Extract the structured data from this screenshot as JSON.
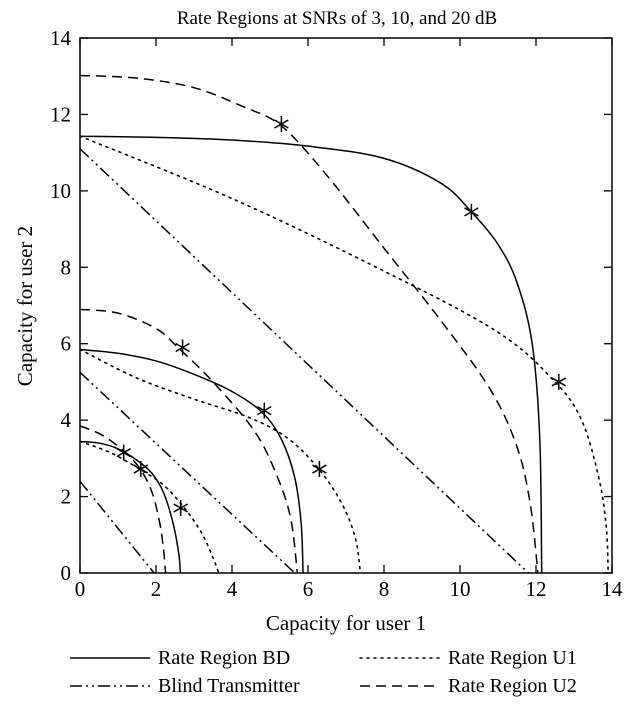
{
  "chart_data": {
    "type": "line",
    "title": "Rate Regions at SNRs of 3, 10, and 20 dB",
    "xlabel": "Capacity for user 1",
    "ylabel": "Capacity for user 2",
    "xlim": [
      0,
      14
    ],
    "ylim": [
      0,
      14
    ],
    "xticks": [
      "0",
      "2",
      "4",
      "6",
      "8",
      "10",
      "12",
      "14"
    ],
    "yticks": [
      "0",
      "2",
      "4",
      "6",
      "8",
      "10",
      "12",
      "14"
    ],
    "grid": false,
    "legend_position": "bottom",
    "legend": [
      {
        "label": "Rate Region BD",
        "style": "solid"
      },
      {
        "label": "Rate Region U1",
        "style": "dotted"
      },
      {
        "label": "Blind Transmitter",
        "style": "dashdotdot"
      },
      {
        "label": "Rate Region U2",
        "style": "dashed"
      }
    ],
    "series": [
      {
        "style": "solid",
        "snr_db": 3,
        "points": [
          [
            0,
            3.44
          ],
          [
            0.5,
            3.4
          ],
          [
            1,
            3.25
          ],
          [
            1.5,
            2.95
          ],
          [
            1.9,
            2.6
          ],
          [
            2.2,
            2.1
          ],
          [
            2.45,
            1.3
          ],
          [
            2.6,
            0.5
          ],
          [
            2.64,
            0
          ]
        ]
      },
      {
        "style": "solid",
        "snr_db": 10,
        "points": [
          [
            0,
            5.85
          ],
          [
            1,
            5.75
          ],
          [
            2,
            5.55
          ],
          [
            3,
            5.2
          ],
          [
            4,
            4.75
          ],
          [
            4.8,
            4.2
          ],
          [
            5.3,
            3.5
          ],
          [
            5.65,
            2.5
          ],
          [
            5.82,
            1.3
          ],
          [
            5.87,
            0
          ]
        ]
      },
      {
        "style": "solid",
        "snr_db": 20,
        "points": [
          [
            0,
            11.43
          ],
          [
            2,
            11.4
          ],
          [
            4,
            11.33
          ],
          [
            6,
            11.17
          ],
          [
            8,
            10.85
          ],
          [
            9.5,
            10.2
          ],
          [
            10.3,
            9.45
          ],
          [
            11,
            8.6
          ],
          [
            11.5,
            7.6
          ],
          [
            11.9,
            6
          ],
          [
            12.1,
            3.5
          ],
          [
            12.15,
            0
          ]
        ]
      },
      {
        "style": "dotted",
        "snr_db": 3,
        "points": [
          [
            0,
            3.44
          ],
          [
            0.8,
            3.15
          ],
          [
            1.6,
            2.7
          ],
          [
            2.2,
            2.3
          ],
          [
            2.75,
            1.7
          ],
          [
            3.2,
            1.05
          ],
          [
            3.5,
            0.4
          ],
          [
            3.65,
            0
          ]
        ]
      },
      {
        "style": "dotted",
        "snr_db": 10,
        "points": [
          [
            0,
            5.85
          ],
          [
            1.5,
            5.1
          ],
          [
            3,
            4.55
          ],
          [
            4.5,
            4.05
          ],
          [
            5.5,
            3.5
          ],
          [
            6.3,
            2.7
          ],
          [
            6.9,
            1.8
          ],
          [
            7.25,
            0.9
          ],
          [
            7.38,
            0
          ]
        ]
      },
      {
        "style": "dotted",
        "snr_db": 20,
        "points": [
          [
            0,
            11.43
          ],
          [
            4,
            9.8
          ],
          [
            8,
            7.9
          ],
          [
            11,
            6.3
          ],
          [
            12.5,
            5.0
          ],
          [
            13.2,
            4.0
          ],
          [
            13.65,
            2.5
          ],
          [
            13.85,
            1.2
          ],
          [
            13.9,
            0
          ]
        ]
      },
      {
        "style": "dashed",
        "snr_db": 3,
        "points": [
          [
            0,
            3.85
          ],
          [
            0.6,
            3.6
          ],
          [
            1.2,
            3.15
          ],
          [
            1.6,
            2.7
          ],
          [
            1.9,
            2.1
          ],
          [
            2.1,
            1.3
          ],
          [
            2.2,
            0.6
          ],
          [
            2.25,
            0
          ]
        ]
      },
      {
        "style": "dashed",
        "snr_db": 10,
        "points": [
          [
            0,
            6.9
          ],
          [
            1,
            6.8
          ],
          [
            2,
            6.4
          ],
          [
            2.6,
            5.88
          ],
          [
            3.5,
            5.0
          ],
          [
            4.6,
            3.7
          ],
          [
            5.2,
            2.5
          ],
          [
            5.55,
            1.4
          ],
          [
            5.72,
            0
          ]
        ]
      },
      {
        "style": "dashed",
        "snr_db": 20,
        "points": [
          [
            0,
            13.02
          ],
          [
            1.5,
            12.95
          ],
          [
            3,
            12.7
          ],
          [
            4.3,
            12.2
          ],
          [
            5.3,
            11.7
          ],
          [
            6.5,
            10.4
          ],
          [
            8,
            8.5
          ],
          [
            9.5,
            6.6
          ],
          [
            10.8,
            4.8
          ],
          [
            11.5,
            3.3
          ],
          [
            11.85,
            1.8
          ],
          [
            12.05,
            0
          ]
        ]
      },
      {
        "style": "dashdotdot",
        "snr_db": 3,
        "points": [
          [
            0,
            2.4
          ],
          [
            1.95,
            0
          ]
        ]
      },
      {
        "style": "dashdotdot",
        "snr_db": 10,
        "points": [
          [
            0,
            5.25
          ],
          [
            5.65,
            0
          ]
        ]
      },
      {
        "style": "dashdotdot",
        "snr_db": 20,
        "points": [
          [
            0,
            11.1
          ],
          [
            11.8,
            0
          ]
        ]
      }
    ],
    "markers": {
      "symbol": "*",
      "points": [
        [
          1.15,
          3.15
        ],
        [
          1.6,
          2.72
        ],
        [
          2.65,
          1.7
        ],
        [
          2.7,
          5.9
        ],
        [
          4.85,
          4.25
        ],
        [
          6.3,
          2.72
        ],
        [
          5.3,
          11.75
        ],
        [
          10.3,
          9.45
        ],
        [
          12.6,
          5.0
        ]
      ]
    }
  }
}
